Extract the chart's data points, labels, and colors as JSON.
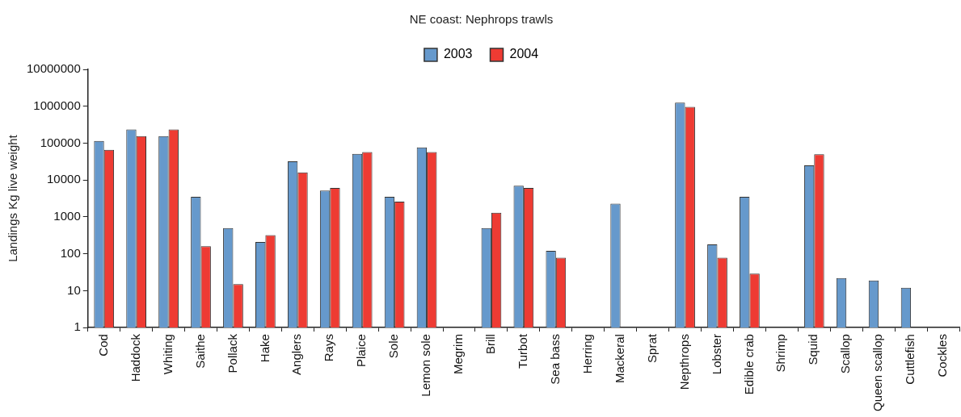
{
  "chart_data": {
    "type": "bar",
    "title": "NE coast: Nephrops trawls",
    "ylabel": "Landings Kg live weight",
    "categories": [
      "Cod",
      "Haddock",
      "Whiting",
      "Saithe",
      "Pollack",
      "Hake",
      "Anglers",
      "Rays",
      "Plaice",
      "Sole",
      "Lemon sole",
      "Megrim",
      "Brill",
      "Turbot",
      "Sea bass",
      "Herring",
      "Mackeral",
      "Sprat",
      "Nepthrops",
      "Lobster",
      "Edible crab",
      "Shrimp",
      "Squid",
      "Scallop",
      "Queen scallop",
      "Cuttlefish",
      "Cockles"
    ],
    "series": [
      {
        "name": "2003",
        "color": "#6699cc",
        "values": [
          115000,
          235000,
          155000,
          3500,
          500,
          210,
          32000,
          5200,
          51000,
          3500,
          77000,
          null,
          500,
          7000,
          120,
          null,
          2300,
          null,
          1260000,
          180,
          3500,
          null,
          25000,
          22,
          19,
          12,
          null
        ]
      },
      {
        "name": "2004",
        "color": "#ee3b33",
        "values": [
          66000,
          155000,
          235000,
          160,
          15,
          320,
          16000,
          6100,
          57000,
          2600,
          57000,
          null,
          1300,
          6100,
          78,
          null,
          null,
          null,
          960000,
          78,
          29,
          null,
          50000,
          null,
          null,
          null,
          null
        ]
      }
    ],
    "log": true,
    "ylim": [
      1,
      10000000
    ],
    "yticks": [
      1,
      10,
      100,
      1000,
      10000,
      100000,
      1000000,
      10000000
    ],
    "legend": "top"
  }
}
